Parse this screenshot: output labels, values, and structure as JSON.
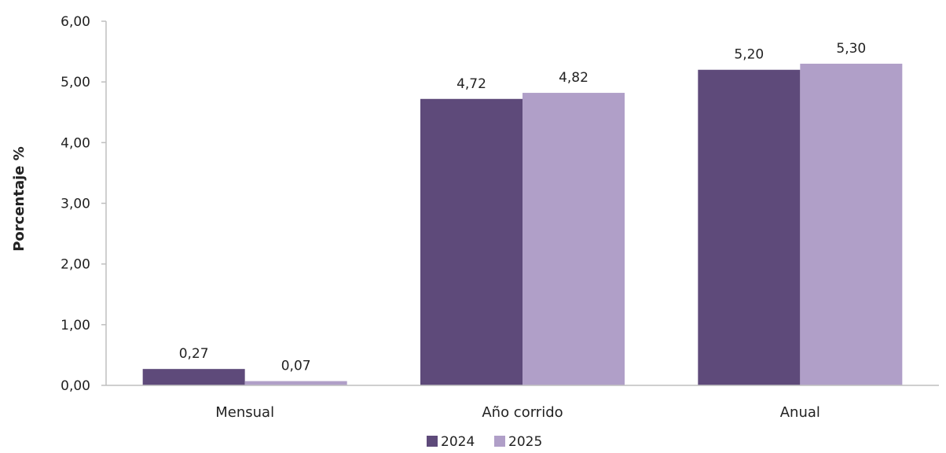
{
  "chart_data": {
    "type": "bar",
    "categories": [
      "Mensual",
      "Año corrido",
      "Anual"
    ],
    "series": [
      {
        "name": "2024",
        "values": [
          0.27,
          4.72,
          5.2
        ],
        "labels": [
          "0,27",
          "4,72",
          "5,20"
        ],
        "color": "#5e4a7a"
      },
      {
        "name": "2025",
        "values": [
          0.07,
          4.82,
          5.3
        ],
        "labels": [
          "0,07",
          "4,82",
          "5,30"
        ],
        "color": "#b09fc8"
      }
    ],
    "title": "",
    "xlabel": "",
    "ylabel": "Porcentaje %",
    "ylim": [
      0,
      6
    ],
    "yticks": [
      0,
      1,
      2,
      3,
      4,
      5,
      6
    ],
    "ytick_labels": [
      "0,00",
      "1,00",
      "2,00",
      "3,00",
      "4,00",
      "5,00",
      "6,00"
    ],
    "grid": false,
    "legend": "bottom-center"
  },
  "colors": {
    "axis": "#bfbfbf"
  }
}
